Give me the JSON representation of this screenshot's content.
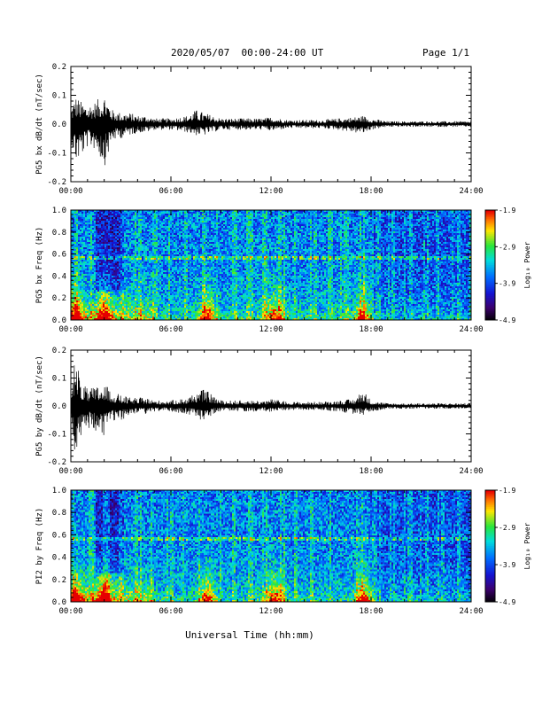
{
  "header": {
    "title": "2020/05/07  00:00-24:00 UT",
    "page": "Page 1/1"
  },
  "xlabel": "Universal Time (hh:mm)",
  "chart_data": [
    {
      "type": "line",
      "ylabel": "PG5 bx dB/dt (nT/sec)",
      "xlim": [
        0,
        24
      ],
      "ylim": [
        -0.2,
        0.2
      ],
      "yticks": [
        "0.2",
        "0.1",
        "0.0",
        "-0.1",
        "-0.2"
      ],
      "xticks": [
        "00:00",
        "06:00",
        "12:00",
        "18:00",
        "24:00"
      ],
      "x_unit": "hours UT",
      "envelope": {
        "x": [
          0,
          0.3,
          0.6,
          1.0,
          1.5,
          2.0,
          2.5,
          3.0,
          3.5,
          4.0,
          4.5,
          5.0,
          6.0,
          7.0,
          7.5,
          8.0,
          8.5,
          9.0,
          10.0,
          11.0,
          11.5,
          12.0,
          13.0,
          14.0,
          15.0,
          16.0,
          17.0,
          17.5,
          18.0,
          19.0,
          20.0,
          22.0,
          24.0
        ],
        "max": [
          0.06,
          0.1,
          0.08,
          0.07,
          0.08,
          0.11,
          0.05,
          0.04,
          0.04,
          0.03,
          0.03,
          0.02,
          0.02,
          0.03,
          0.05,
          0.04,
          0.03,
          0.02,
          0.02,
          0.02,
          0.02,
          0.025,
          0.015,
          0.015,
          0.015,
          0.02,
          0.025,
          0.03,
          0.02,
          0.01,
          0.01,
          0.01,
          0.01
        ],
        "min": [
          -0.06,
          -0.14,
          -0.12,
          -0.08,
          -0.09,
          -0.15,
          -0.06,
          -0.05,
          -0.04,
          -0.03,
          -0.03,
          -0.02,
          -0.02,
          -0.03,
          -0.04,
          -0.04,
          -0.03,
          -0.02,
          -0.02,
          -0.02,
          -0.02,
          -0.025,
          -0.015,
          -0.015,
          -0.015,
          -0.02,
          -0.03,
          -0.035,
          -0.02,
          -0.01,
          -0.01,
          -0.01,
          -0.01
        ]
      }
    },
    {
      "type": "heatmap",
      "ylabel": "PG5 bx Freq (Hz)",
      "xlim": [
        0,
        24
      ],
      "ylim": [
        0,
        1.0
      ],
      "yticks": [
        "1.0",
        "0.8",
        "0.6",
        "0.4",
        "0.2",
        "0.0"
      ],
      "xticks": [
        "00:00",
        "06:00",
        "12:00",
        "18:00",
        "24:00"
      ],
      "colorbar": {
        "label": "Log₁₀ Power",
        "ticks": [
          "-1.9",
          "-2.9",
          "-3.9",
          "-4.9"
        ],
        "range": [
          -4.9,
          -1.9
        ]
      },
      "band_hz": 0.57,
      "bursts_hours": [
        0.3,
        2.0,
        8.2,
        12.2,
        17.5
      ]
    },
    {
      "type": "line",
      "ylabel": "PG5 by dB/dt (nT/sec)",
      "xlim": [
        0,
        24
      ],
      "ylim": [
        -0.2,
        0.2
      ],
      "yticks": [
        "0.2",
        "0.1",
        "0.0",
        "-0.1",
        "-0.2"
      ],
      "xticks": [
        "00:00",
        "06:00",
        "12:00",
        "18:00",
        "24:00"
      ],
      "x_unit": "hours UT",
      "envelope": {
        "x": [
          0,
          0.3,
          0.6,
          1.0,
          1.5,
          2.0,
          2.5,
          3.0,
          3.5,
          4.0,
          4.5,
          5.0,
          6.0,
          7.0,
          7.5,
          8.0,
          8.5,
          9.0,
          10.0,
          11.0,
          11.5,
          12.0,
          13.0,
          14.0,
          15.0,
          16.0,
          17.0,
          17.5,
          18.0,
          19.0,
          20.0,
          22.0,
          24.0
        ],
        "max": [
          0.1,
          0.18,
          0.09,
          0.06,
          0.07,
          0.08,
          0.05,
          0.04,
          0.03,
          0.03,
          0.03,
          0.02,
          0.02,
          0.03,
          0.05,
          0.06,
          0.04,
          0.02,
          0.02,
          0.02,
          0.02,
          0.025,
          0.015,
          0.015,
          0.015,
          0.02,
          0.025,
          0.06,
          0.02,
          0.01,
          0.01,
          0.01,
          0.01
        ],
        "min": [
          -0.1,
          -0.2,
          -0.11,
          -0.08,
          -0.09,
          -0.11,
          -0.06,
          -0.05,
          -0.04,
          -0.03,
          -0.03,
          -0.02,
          -0.02,
          -0.03,
          -0.04,
          -0.07,
          -0.03,
          -0.02,
          -0.02,
          -0.02,
          -0.02,
          -0.025,
          -0.015,
          -0.015,
          -0.015,
          -0.02,
          -0.03,
          -0.035,
          -0.02,
          -0.01,
          -0.01,
          -0.01,
          -0.01
        ]
      }
    },
    {
      "type": "heatmap",
      "ylabel": "PI2 by Freq (Hz)",
      "xlim": [
        0,
        24
      ],
      "ylim": [
        0,
        1.0
      ],
      "yticks": [
        "1.0",
        "0.8",
        "0.6",
        "0.4",
        "0.2",
        "0.0"
      ],
      "xticks": [
        "00:00",
        "06:00",
        "12:00",
        "18:00",
        "24:00"
      ],
      "colorbar": {
        "label": "Log₁₀ Power",
        "ticks": [
          "-1.9",
          "-2.9",
          "-3.9",
          "-4.9"
        ],
        "range": [
          -4.9,
          -1.9
        ]
      },
      "band_hz": 0.56,
      "bursts_hours": [
        0.3,
        2.0,
        8.2,
        12.2,
        17.5
      ]
    }
  ]
}
